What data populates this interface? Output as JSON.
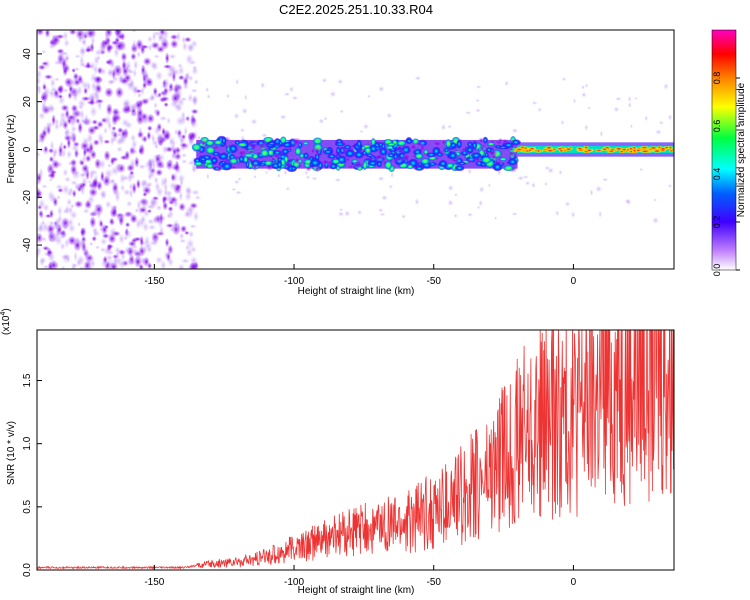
{
  "title": "C2E2.2025.251.10.33.R04",
  "chart_data": [
    {
      "type": "heatmap",
      "xlabel": "Height of straight line (km)",
      "ylabel": "Frequency (Hz)",
      "xlim": [
        -192,
        36
      ],
      "ylim": [
        -50,
        50
      ],
      "xticks": [
        -150,
        -100,
        -50,
        0
      ],
      "xtick_labels": [
        "-150",
        "-100",
        "-50",
        "0"
      ],
      "yticks": [
        40,
        20,
        0,
        -20,
        -40
      ],
      "ytick_labels": [
        "40",
        "20",
        "0",
        "-20",
        "-40"
      ],
      "colorbar": {
        "label": "Normalized spectral amplitude",
        "range": [
          0,
          1
        ],
        "ticks": [
          0.0,
          0.2,
          0.4,
          0.6,
          0.8
        ],
        "tick_labels": [
          "0.0",
          "0.2",
          "0.4",
          "0.6",
          "0.8"
        ],
        "stops": [
          "#ffffff",
          "#8a00e6",
          "#0000ff",
          "#00ffff",
          "#00ff00",
          "#ffff00",
          "#ff8000",
          "#ff0000",
          "#ff00ff"
        ]
      },
      "regions": [
        {
          "name": "noise",
          "x_range": [
            -192,
            -135
          ],
          "y_range": [
            -50,
            50
          ],
          "amplitude": 0.15
        },
        {
          "name": "band",
          "x_range": [
            -135,
            -20
          ],
          "center_hz": -2,
          "width_hz": 12,
          "amplitude": 0.45
        },
        {
          "name": "carrier",
          "x_range": [
            -20,
            36
          ],
          "center_hz": 0,
          "width_hz": 3,
          "amplitude": 0.9
        }
      ]
    },
    {
      "type": "line",
      "xlabel": "Height of straight line (km)",
      "ylabel": "SNR (10 * v/v)",
      "y_multiplier": "(x10",
      "y_exponent": "4",
      "xlim": [
        -192,
        36
      ],
      "ylim": [
        0.0,
        1.9
      ],
      "xticks": [
        -150,
        -100,
        -50,
        0
      ],
      "xtick_labels": [
        "-150",
        "-100",
        "-50",
        "0"
      ],
      "yticks": [
        0.0,
        0.5,
        1.0,
        1.5
      ],
      "ytick_labels": [
        "0.0",
        "0.5",
        "1.0",
        "1.5"
      ],
      "color": "#ee3333",
      "envelope": [
        {
          "x": -192,
          "y": 0.02
        },
        {
          "x": -140,
          "y": 0.02
        },
        {
          "x": -130,
          "y": 0.05
        },
        {
          "x": -115,
          "y": 0.08
        },
        {
          "x": -100,
          "y": 0.18
        },
        {
          "x": -80,
          "y": 0.32
        },
        {
          "x": -60,
          "y": 0.4
        },
        {
          "x": -45,
          "y": 0.55
        },
        {
          "x": -30,
          "y": 0.8
        },
        {
          "x": -20,
          "y": 1.1
        },
        {
          "x": -10,
          "y": 1.25
        },
        {
          "x": 0,
          "y": 1.35
        },
        {
          "x": 15,
          "y": 1.6
        },
        {
          "x": 25,
          "y": 1.75
        },
        {
          "x": 36,
          "y": 1.7
        }
      ]
    }
  ]
}
